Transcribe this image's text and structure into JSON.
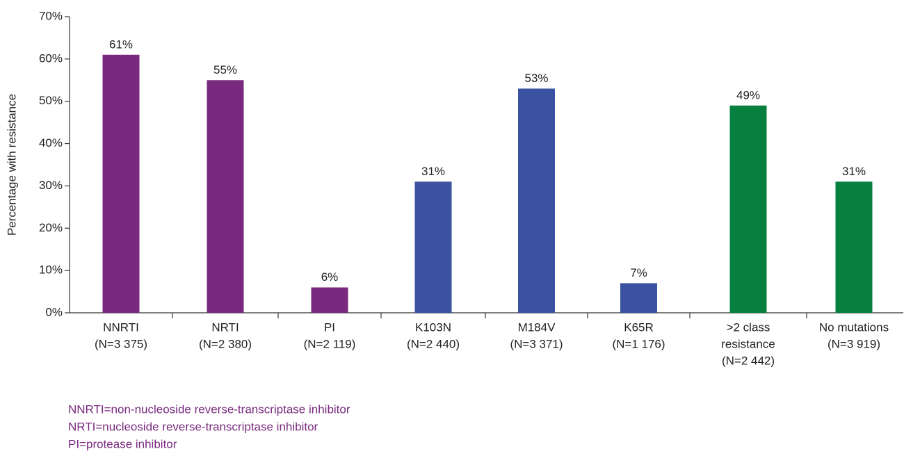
{
  "chart_data": {
    "type": "bar",
    "y_label": "Percentage with resistance",
    "categories": [
      [
        "NNRTI",
        "(N=3 375)"
      ],
      [
        "NRTI",
        "(N=2 380)"
      ],
      [
        "PI",
        "(N=2 119)"
      ],
      [
        "K103N",
        "(N=2 440)"
      ],
      [
        "M184V",
        "(N=3 371)"
      ],
      [
        "K65R",
        "(N=1 176)"
      ],
      [
        ">2 class",
        "resistance",
        "(N=2 442)"
      ],
      [
        "No mutations",
        "(N=3 919)"
      ]
    ],
    "values": [
      61,
      55,
      6,
      31,
      53,
      7,
      49,
      31
    ],
    "value_labels": [
      "61%",
      "55%",
      "6%",
      "31%",
      "53%",
      "7%",
      "49%",
      "31%"
    ],
    "colors": [
      "#79297e",
      "#79297e",
      "#79297e",
      "#3a52a0",
      "#3a52a0",
      "#3a52a0",
      "#077f3e",
      "#077f3e"
    ],
    "ylim": [
      0,
      70
    ],
    "yticks": [
      {
        "value": 0,
        "label": "0%"
      },
      {
        "value": 10,
        "label": "10%"
      },
      {
        "value": 20,
        "label": "20%"
      },
      {
        "value": 30,
        "label": "30%"
      },
      {
        "value": 40,
        "label": "40%"
      },
      {
        "value": 50,
        "label": "50%"
      },
      {
        "value": 60,
        "label": "60%"
      },
      {
        "value": 70,
        "label": "70%"
      }
    ],
    "grid": false,
    "annotations": [
      "NNRTI=non-nucleoside reverse-transcriptase inhibitor",
      "NRTI=nucleoside reverse-transcriptase inhibitor",
      "PI=protease inhibitor"
    ],
    "annotation_color": "#79297e"
  }
}
